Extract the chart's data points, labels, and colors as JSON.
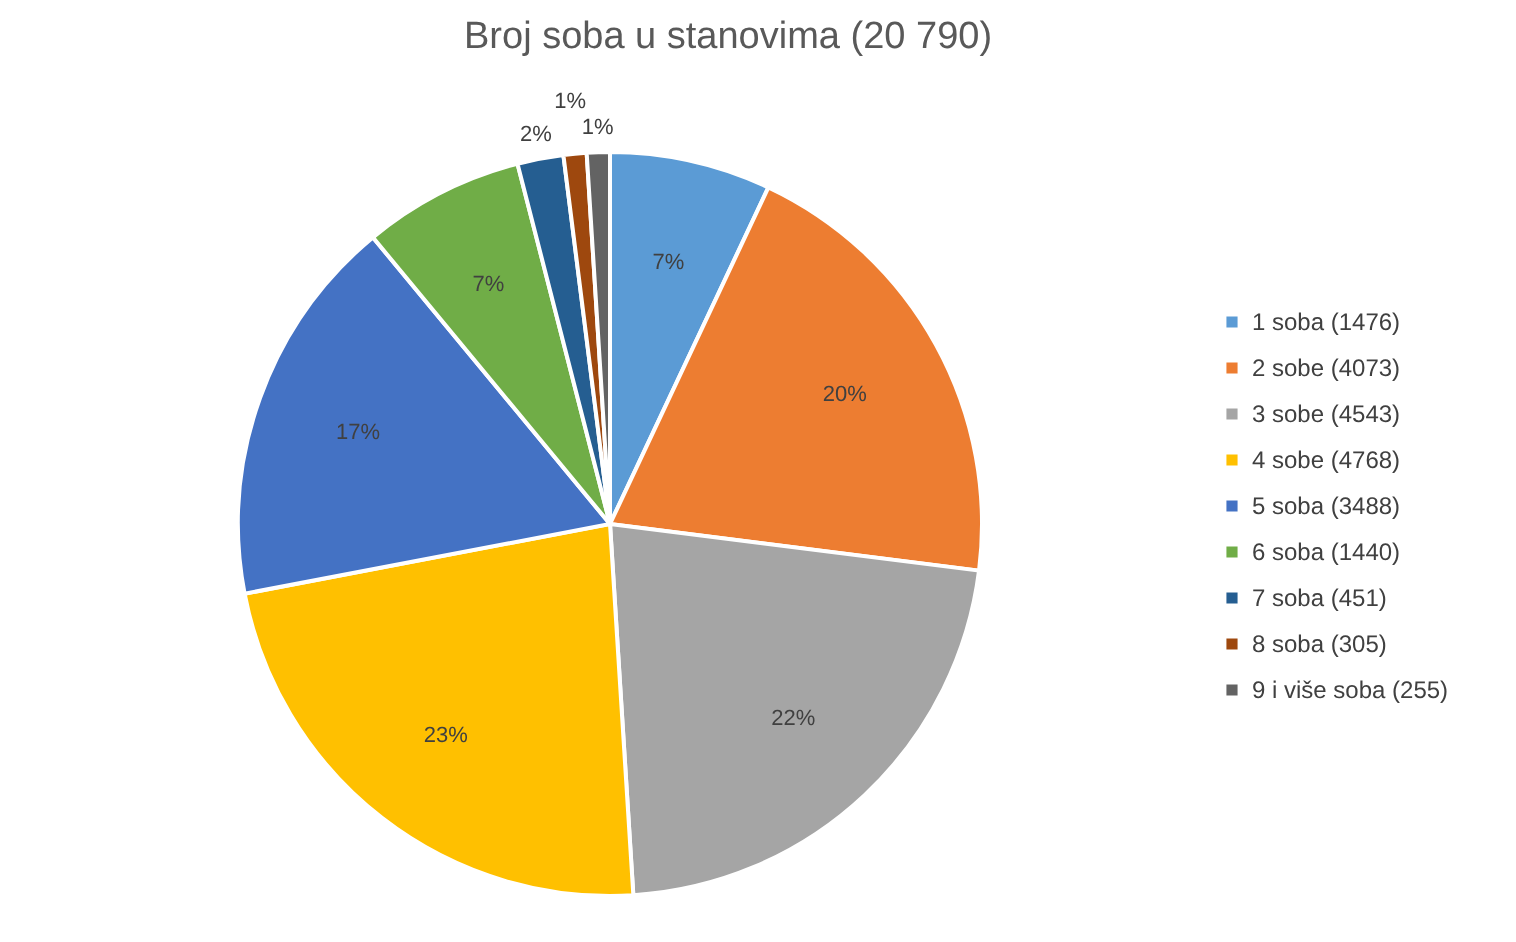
{
  "chart_data": {
    "type": "pie",
    "title": "Broj soba u stanovima (20 790)",
    "categories": [
      "1 soba (1476)",
      "2 sobe (4073)",
      "3 sobe (4543)",
      "4 sobe (4768)",
      "5 soba (3488)",
      "6 soba (1440)",
      "7 soba (451)",
      "8 soba (305)",
      "9 i više soba (255)"
    ],
    "values": [
      7,
      20,
      22,
      23,
      17,
      7,
      2,
      1,
      1
    ],
    "value_labels": [
      "7%",
      "20%",
      "22%",
      "23%",
      "17%",
      "7%",
      "2%",
      "1%",
      "1%"
    ],
    "colors": [
      "#5b9bd5",
      "#ed7d31",
      "#a5a5a5",
      "#ffc000",
      "#4472c4",
      "#70ad47",
      "#255e91",
      "#9e480e",
      "#636363"
    ],
    "legend": "right"
  }
}
